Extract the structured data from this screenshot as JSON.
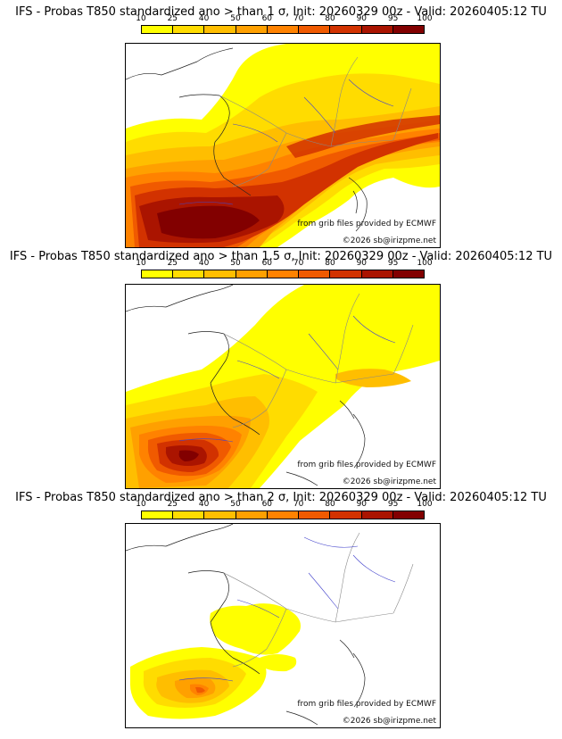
{
  "legend": {
    "ticks": [
      "10",
      "25",
      "40",
      "50",
      "60",
      "70",
      "80",
      "90",
      "95",
      "100"
    ],
    "colors": [
      "#ffff00",
      "#ffdc00",
      "#ffbe00",
      "#ffa000",
      "#ff8200",
      "#f05a00",
      "#d23200",
      "#aa1400",
      "#820000",
      "#500000"
    ]
  },
  "panels": [
    {
      "title": "IFS - Probas T850  standardized ano > than 1 σ, Init: 20260329 00z - Valid: 20260405:12 TU"
    },
    {
      "title": "IFS - Probas T850  standardized ano > than 1.5 σ, Init: 20260329 00z - Valid: 20260405:12 TU"
    },
    {
      "title": "IFS - Probas T850  standardized ano > than 2 σ, Init: 20260329 00z - Valid: 20260405:12 TU"
    }
  ],
  "credits": {
    "source": "from grib files provided by ECMWF",
    "copyright": "©2026 sb@irizpme.net"
  }
}
